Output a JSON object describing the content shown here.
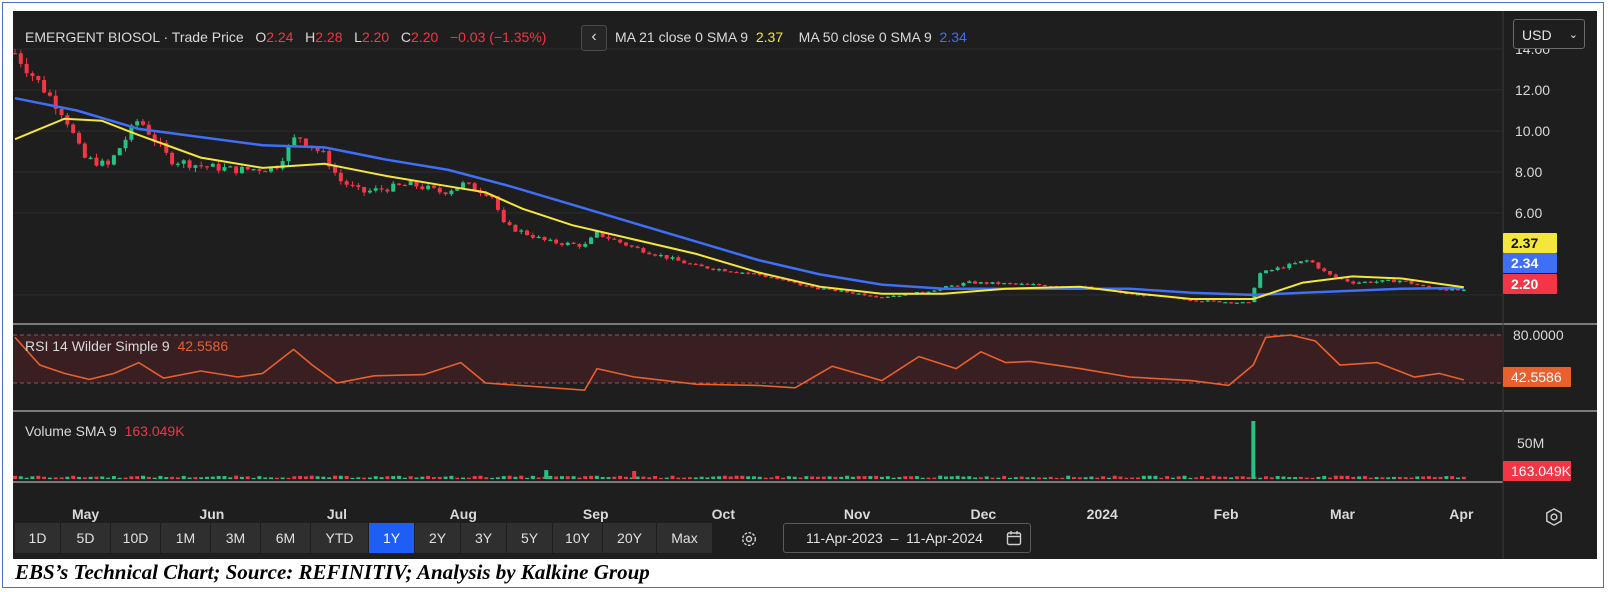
{
  "header": {
    "instrument": "EMERGENT BIOSOL",
    "separator": " · ",
    "price_type": "Trade Price",
    "o_label": "O",
    "o_value": "2.24",
    "h_label": "H",
    "h_value": "2.28",
    "l_label": "L",
    "l_value": "2.20",
    "c_label": "C",
    "c_value": "2.20",
    "change": "−0.03 (−1.35%)",
    "back_icon": "‹",
    "ma21_label": "MA 21 close 0 SMA 9",
    "ma21_value": "2.37",
    "ma50_label": "MA 50 close 0 SMA 9",
    "ma50_value": "2.34"
  },
  "currency": {
    "selected": "USD",
    "chevron": "⌄"
  },
  "rsi": {
    "label": "RSI 14 Wilder Simple 9",
    "value": "42.5586",
    "axis_label": "80.0000"
  },
  "volume": {
    "label": "Volume SMA 9",
    "value": "163.049K",
    "axis_label": "50M"
  },
  "price_tags": {
    "ma21": "2.37",
    "ma50": "2.34",
    "last": "2.20"
  },
  "range_buttons": [
    "1D",
    "5D",
    "10D",
    "1M",
    "3M",
    "6M",
    "YTD",
    "1Y",
    "2Y",
    "3Y",
    "5Y",
    "10Y",
    "20Y",
    "Max"
  ],
  "active_range": "1Y",
  "date_range": {
    "from": "11-Apr-2023",
    "dash": "–",
    "to": "11-Apr-2024"
  },
  "caption": "EBS’s Technical Chart; Source: REFINITIV; Analysis by Kalkine Group",
  "colors": {
    "background": "#1e1e1e",
    "up": "#26c281",
    "down": "#f23645",
    "ma21": "#f5e63a",
    "ma50": "#3f6ff5",
    "rsi": "#e8602c",
    "active": "#1e5ef5"
  },
  "chart_data": {
    "type": "candlestick",
    "x_ticks": [
      "May",
      "Jun",
      "Jul",
      "Aug",
      "Sep",
      "Oct",
      "Nov",
      "Dec",
      "2024",
      "Feb",
      "Mar",
      "Apr"
    ],
    "x_tick_positions": [
      0.057,
      0.159,
      0.26,
      0.362,
      0.469,
      0.572,
      0.68,
      0.782,
      0.878,
      0.978,
      1.072,
      1.168
    ],
    "x_range": [
      0,
      1.2
    ],
    "y_ticks": [
      "14.00",
      "12.00",
      "10.00",
      "8.00",
      "6.00"
    ],
    "y_tick_values": [
      14,
      12,
      10,
      8,
      6
    ],
    "ylim": [
      1.7,
      14.1
    ],
    "ohlc_keypoints": [
      {
        "t": 0.0,
        "c": 13.8
      },
      {
        "t": 0.02,
        "c": 12.3
      },
      {
        "t": 0.04,
        "c": 10.8
      },
      {
        "t": 0.055,
        "c": 8.7
      },
      {
        "t": 0.075,
        "c": 8.3
      },
      {
        "t": 0.1,
        "c": 10.6
      },
      {
        "t": 0.125,
        "c": 8.6
      },
      {
        "t": 0.15,
        "c": 8.3
      },
      {
        "t": 0.18,
        "c": 8.1
      },
      {
        "t": 0.21,
        "c": 8.2
      },
      {
        "t": 0.228,
        "c": 9.8
      },
      {
        "t": 0.25,
        "c": 8.8
      },
      {
        "t": 0.262,
        "c": 7.6
      },
      {
        "t": 0.28,
        "c": 7.0
      },
      {
        "t": 0.32,
        "c": 7.4
      },
      {
        "t": 0.345,
        "c": 7.0
      },
      {
        "t": 0.362,
        "c": 7.4
      },
      {
        "t": 0.385,
        "c": 6.9
      },
      {
        "t": 0.395,
        "c": 5.4
      },
      {
        "t": 0.43,
        "c": 4.6
      },
      {
        "t": 0.46,
        "c": 4.4
      },
      {
        "t": 0.47,
        "c": 5.0
      },
      {
        "t": 0.5,
        "c": 4.3
      },
      {
        "t": 0.55,
        "c": 3.4
      },
      {
        "t": 0.6,
        "c": 3.0
      },
      {
        "t": 0.64,
        "c": 2.4
      },
      {
        "t": 0.7,
        "c": 1.9
      },
      {
        "t": 0.73,
        "c": 2.1
      },
      {
        "t": 0.77,
        "c": 2.6
      },
      {
        "t": 0.82,
        "c": 2.5
      },
      {
        "t": 0.86,
        "c": 2.4
      },
      {
        "t": 0.9,
        "c": 2.05
      },
      {
        "t": 0.96,
        "c": 1.7
      },
      {
        "t": 0.998,
        "c": 1.6
      },
      {
        "t": 1.003,
        "c": 3.0
      },
      {
        "t": 1.02,
        "c": 3.3
      },
      {
        "t": 1.045,
        "c": 3.7
      },
      {
        "t": 1.06,
        "c": 3.0
      },
      {
        "t": 1.08,
        "c": 2.6
      },
      {
        "t": 1.12,
        "c": 2.7
      },
      {
        "t": 1.14,
        "c": 2.35
      },
      {
        "t": 1.17,
        "c": 2.2
      }
    ],
    "ma21": [
      [
        0.0,
        9.6
      ],
      [
        0.04,
        10.6
      ],
      [
        0.07,
        10.5
      ],
      [
        0.1,
        9.8
      ],
      [
        0.15,
        8.7
      ],
      [
        0.2,
        8.2
      ],
      [
        0.25,
        8.4
      ],
      [
        0.3,
        7.8
      ],
      [
        0.35,
        7.3
      ],
      [
        0.38,
        7.0
      ],
      [
        0.41,
        6.2
      ],
      [
        0.45,
        5.4
      ],
      [
        0.5,
        4.7
      ],
      [
        0.55,
        4.0
      ],
      [
        0.6,
        3.1
      ],
      [
        0.65,
        2.4
      ],
      [
        0.7,
        2.05
      ],
      [
        0.75,
        2.05
      ],
      [
        0.8,
        2.3
      ],
      [
        0.86,
        2.4
      ],
      [
        0.9,
        2.1
      ],
      [
        0.95,
        1.8
      ],
      [
        1.0,
        1.8
      ],
      [
        1.04,
        2.6
      ],
      [
        1.08,
        2.9
      ],
      [
        1.12,
        2.8
      ],
      [
        1.17,
        2.37
      ]
    ],
    "ma50": [
      [
        0.0,
        11.6
      ],
      [
        0.05,
        11.0
      ],
      [
        0.1,
        10.1
      ],
      [
        0.15,
        9.7
      ],
      [
        0.2,
        9.3
      ],
      [
        0.25,
        9.2
      ],
      [
        0.3,
        8.6
      ],
      [
        0.35,
        8.1
      ],
      [
        0.4,
        7.3
      ],
      [
        0.45,
        6.4
      ],
      [
        0.5,
        5.5
      ],
      [
        0.55,
        4.6
      ],
      [
        0.6,
        3.7
      ],
      [
        0.65,
        3.0
      ],
      [
        0.7,
        2.5
      ],
      [
        0.75,
        2.3
      ],
      [
        0.8,
        2.3
      ],
      [
        0.86,
        2.3
      ],
      [
        0.9,
        2.3
      ],
      [
        0.95,
        2.1
      ],
      [
        1.0,
        2.0
      ],
      [
        1.04,
        2.1
      ],
      [
        1.08,
        2.2
      ],
      [
        1.12,
        2.3
      ],
      [
        1.17,
        2.34
      ]
    ],
    "rsi": {
      "ylim": [
        20,
        85
      ],
      "band": [
        40,
        80
      ],
      "points": [
        [
          0.0,
          78
        ],
        [
          0.02,
          55
        ],
        [
          0.04,
          48
        ],
        [
          0.06,
          43
        ],
        [
          0.08,
          48
        ],
        [
          0.1,
          57
        ],
        [
          0.12,
          44
        ],
        [
          0.15,
          50
        ],
        [
          0.18,
          45
        ],
        [
          0.2,
          48
        ],
        [
          0.225,
          68
        ],
        [
          0.24,
          55
        ],
        [
          0.26,
          40
        ],
        [
          0.29,
          46
        ],
        [
          0.33,
          47
        ],
        [
          0.36,
          57
        ],
        [
          0.38,
          40
        ],
        [
          0.42,
          37
        ],
        [
          0.46,
          34
        ],
        [
          0.47,
          52
        ],
        [
          0.5,
          45
        ],
        [
          0.55,
          39
        ],
        [
          0.6,
          38
        ],
        [
          0.63,
          36
        ],
        [
          0.66,
          54
        ],
        [
          0.7,
          42
        ],
        [
          0.73,
          62
        ],
        [
          0.76,
          52
        ],
        [
          0.78,
          66
        ],
        [
          0.8,
          57
        ],
        [
          0.82,
          58
        ],
        [
          0.86,
          52
        ],
        [
          0.9,
          45
        ],
        [
          0.95,
          42
        ],
        [
          0.98,
          38
        ],
        [
          1.0,
          55
        ],
        [
          1.01,
          78
        ],
        [
          1.03,
          80
        ],
        [
          1.05,
          75
        ],
        [
          1.07,
          55
        ],
        [
          1.1,
          57
        ],
        [
          1.13,
          45
        ],
        [
          1.15,
          48
        ],
        [
          1.17,
          42.56
        ]
      ]
    },
    "volume": {
      "ylim": [
        0,
        65
      ],
      "spike": {
        "t": 1.0,
        "v": 65
      },
      "secondary": [
        {
          "t": 0.429,
          "v": 10
        },
        {
          "t": 0.5,
          "v": 9
        }
      ],
      "baseline": 2.5
    }
  }
}
